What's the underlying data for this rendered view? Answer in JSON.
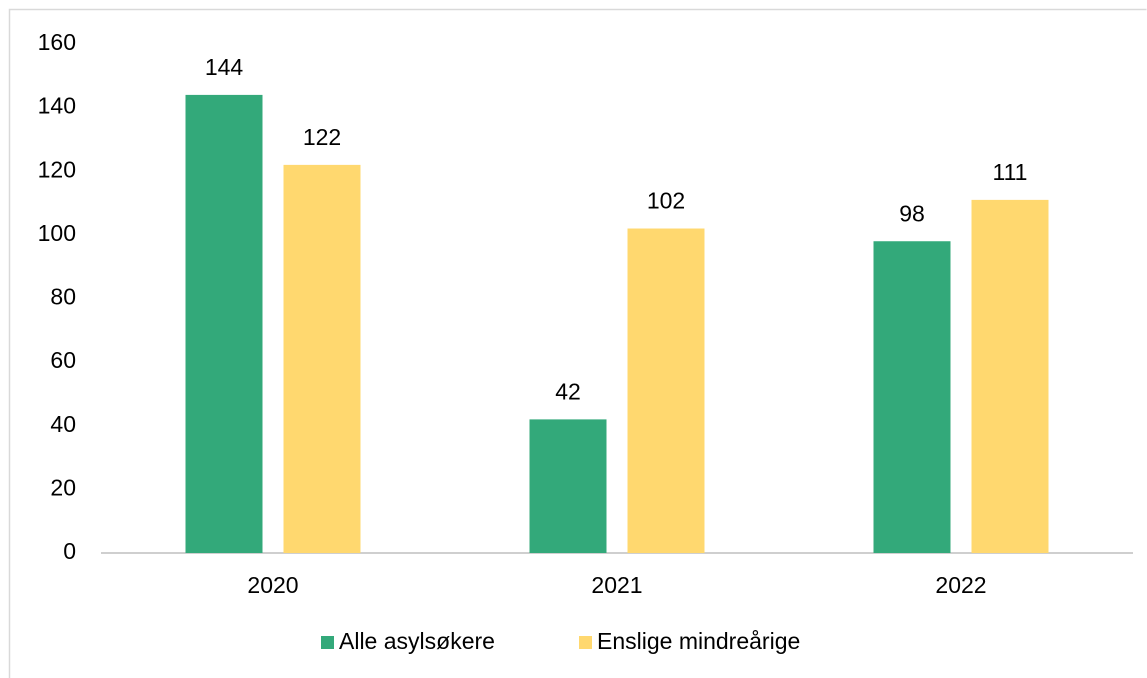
{
  "chart_data": {
    "type": "bar",
    "categories": [
      "2020",
      "2021",
      "2022"
    ],
    "series": [
      {
        "name": "Alle asylsøkere",
        "color": "#33a97a",
        "values": [
          144,
          42,
          98
        ]
      },
      {
        "name": "Enslige mindreårige",
        "color": "#ffd86f",
        "values": [
          122,
          102,
          111
        ]
      }
    ],
    "ylim": [
      0,
      160
    ],
    "yticks": [
      0,
      20,
      40,
      60,
      80,
      100,
      120,
      140,
      160
    ],
    "grid": false,
    "legend": "bottom"
  }
}
